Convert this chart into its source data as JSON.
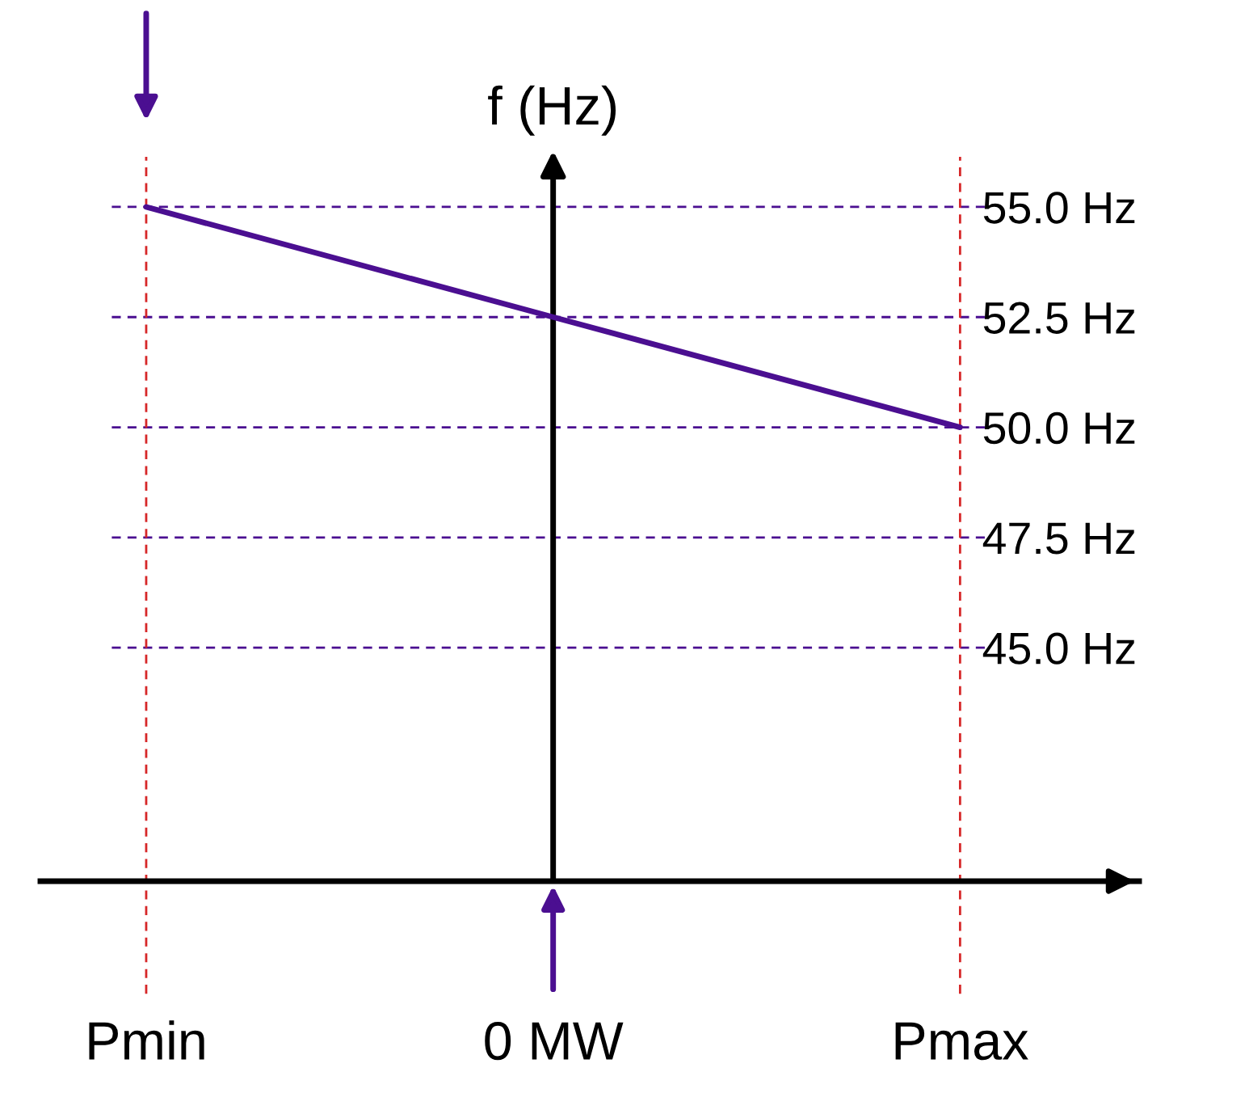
{
  "chart_data": {
    "type": "line",
    "ylabel": "f (Hz)",
    "categories": [
      "Pmin",
      "0 MW",
      "Pmax"
    ],
    "series": [
      {
        "color": "#4b0f91",
        "values": [
          55,
          52.5,
          50
        ]
      }
    ],
    "ylim": [
      39.7,
      55.66
    ],
    "yticks": [
      {
        "value": 45,
        "label": "45.0 Hz"
      },
      {
        "value": 47.5,
        "label": "47.5 Hz"
      },
      {
        "value": 50,
        "label": "50.0 Hz"
      },
      {
        "value": 52.5,
        "label": "52.5 Hz"
      },
      {
        "value": 55,
        "label": "55.0 Hz"
      }
    ],
    "grid": "y",
    "ref_lines": [
      {
        "axis": "x",
        "value": "0 MW",
        "color": "#000000",
        "line_style": "solid"
      },
      {
        "axis": "x",
        "value": "Pmin",
        "color": "#d62728",
        "line_style": "dashed"
      },
      {
        "axis": "x",
        "value": "Pmax",
        "color": "#d62728",
        "line_style": "dashed"
      }
    ]
  }
}
